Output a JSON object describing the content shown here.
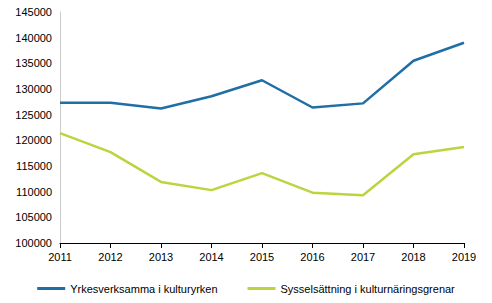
{
  "chart_data": {
    "type": "line",
    "categories": [
      "2011",
      "2012",
      "2013",
      "2014",
      "2015",
      "2016",
      "2017",
      "2018",
      "2019"
    ],
    "series": [
      {
        "name": "Yrkesverksamma i kulturyrken",
        "color": "#1f6ea6",
        "values": [
          127300,
          127300,
          126200,
          128600,
          131700,
          126400,
          127200,
          135500,
          139000
        ]
      },
      {
        "name": "Sysselsättning i kulturnäringsgrenar",
        "color": "#bcd43f",
        "values": [
          121400,
          117700,
          111900,
          110300,
          113600,
          109800,
          109300,
          117300,
          118700
        ]
      }
    ],
    "ylim": [
      100000,
      145000
    ],
    "yticks": [
      100000,
      105000,
      110000,
      115000,
      120000,
      125000,
      130000,
      135000,
      140000,
      145000
    ],
    "grid": false,
    "legend": "bottom"
  }
}
